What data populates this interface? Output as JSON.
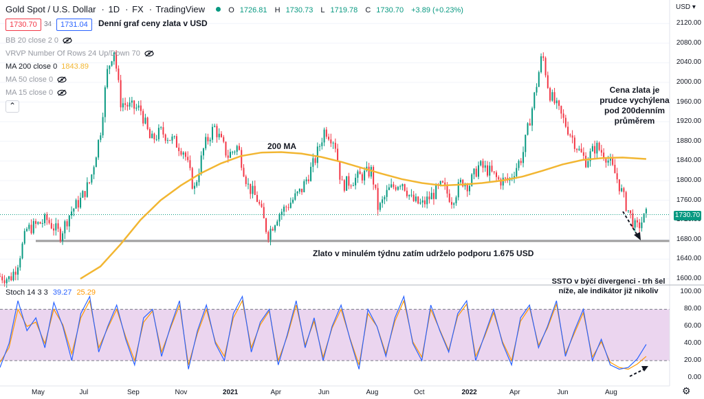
{
  "header": {
    "symbol": "Gold Spot / U.S. Dollar",
    "interval": "1D",
    "exchange": "FX",
    "platform": "TradingView",
    "ohlc": {
      "o_label": "O",
      "o": "1726.81",
      "h_label": "H",
      "h": "1730.73",
      "l_label": "L",
      "l": "1719.78",
      "c_label": "C",
      "c": "1730.70",
      "change": "+3.89 (+0.23%)"
    },
    "sell_price": "1730.70",
    "spread": "34",
    "buy_price": "1731.04",
    "chart_title": "Denní graf ceny zlata v USD",
    "currency": "USD"
  },
  "indicators": [
    {
      "label": "BB 20 close 2 0",
      "active": false
    },
    {
      "label": "VRVP Number Of Rows 24 Up/Down 70",
      "active": false
    },
    {
      "label": "MA 200 close 0",
      "value": "1843.89",
      "active": true
    },
    {
      "label": "MA 50 close 0",
      "active": false
    },
    {
      "label": "MA 15 close 0",
      "active": false
    }
  ],
  "stoch": {
    "label": "Stoch 14 3 3",
    "k": "39.27",
    "d": "25.29",
    "k_color": "#2962ff",
    "d_color": "#ff9800"
  },
  "annotations": {
    "ma_label": "200 MA",
    "support_note": "Zlato v minulém týdnu zatím udrželo podporu 1.675 USD",
    "deviation_note": [
      "Cena zlata je",
      "prudce vychýlena",
      "pod 200denním",
      "průměrem"
    ],
    "ssto_note": [
      "SSTO v býčí divergenci - trh šel",
      "níže, ale indikátor již nikoliv"
    ]
  },
  "colors": {
    "up": "#089981",
    "down": "#f23645",
    "ma200": "#f2b632",
    "support": "#9e9e9e",
    "stoch_band": "#e1bee7"
  },
  "chart_data": {
    "type": "line",
    "xlabels": [
      "May",
      "Jul",
      "Sep",
      "Nov",
      "2021",
      "Apr",
      "Jun",
      "Aug",
      "Oct",
      "2022",
      "Apr",
      "Jun",
      "Aug"
    ],
    "price_axis": {
      "ylim": [
        1590,
        2140
      ],
      "ticks": [
        2120,
        2080,
        2040,
        2000,
        1960,
        1920,
        1880,
        1840,
        1800,
        1760,
        1720,
        1680,
        1640,
        1600
      ],
      "last": 1730.7
    },
    "stoch_axis": {
      "ylim": [
        -8,
        106
      ],
      "ticks": [
        100,
        80,
        60,
        40,
        20,
        0
      ],
      "bands": [
        20,
        80
      ]
    },
    "price_path": [
      [
        0,
        1605
      ],
      [
        0.015,
        1600
      ],
      [
        0.025,
        1625
      ],
      [
        0.04,
        1700
      ],
      [
        0.055,
        1710
      ],
      [
        0.07,
        1720
      ],
      [
        0.09,
        1690
      ],
      [
        0.105,
        1735
      ],
      [
        0.12,
        1760
      ],
      [
        0.135,
        1800
      ],
      [
        0.15,
        1900
      ],
      [
        0.16,
        2020
      ],
      [
        0.17,
        2070
      ],
      [
        0.18,
        1960
      ],
      [
        0.195,
        1950
      ],
      [
        0.21,
        1945
      ],
      [
        0.225,
        1880
      ],
      [
        0.24,
        1900
      ],
      [
        0.26,
        1880
      ],
      [
        0.275,
        1860
      ],
      [
        0.29,
        1780
      ],
      [
        0.305,
        1870
      ],
      [
        0.32,
        1910
      ],
      [
        0.34,
        1850
      ],
      [
        0.355,
        1870
      ],
      [
        0.37,
        1790
      ],
      [
        0.385,
        1760
      ],
      [
        0.4,
        1690
      ],
      [
        0.415,
        1730
      ],
      [
        0.43,
        1750
      ],
      [
        0.45,
        1780
      ],
      [
        0.47,
        1840
      ],
      [
        0.485,
        1905
      ],
      [
        0.5,
        1880
      ],
      [
        0.51,
        1790
      ],
      [
        0.525,
        1800
      ],
      [
        0.54,
        1810
      ],
      [
        0.555,
        1820
      ],
      [
        0.565,
        1740
      ],
      [
        0.58,
        1780
      ],
      [
        0.6,
        1800
      ],
      [
        0.615,
        1760
      ],
      [
        0.63,
        1750
      ],
      [
        0.645,
        1770
      ],
      [
        0.66,
        1790
      ],
      [
        0.675,
        1760
      ],
      [
        0.69,
        1800
      ],
      [
        0.7,
        1790
      ],
      [
        0.715,
        1830
      ],
      [
        0.73,
        1820
      ],
      [
        0.745,
        1800
      ],
      [
        0.76,
        1800
      ],
      [
        0.78,
        1850
      ],
      [
        0.795,
        1950
      ],
      [
        0.81,
        2060
      ],
      [
        0.82,
        1980
      ],
      [
        0.835,
        1940
      ],
      [
        0.85,
        1900
      ],
      [
        0.865,
        1860
      ],
      [
        0.875,
        1840
      ],
      [
        0.89,
        1870
      ],
      [
        0.905,
        1850
      ],
      [
        0.92,
        1810
      ],
      [
        0.935,
        1750
      ],
      [
        0.95,
        1700
      ],
      [
        0.96,
        1720
      ],
      [
        0.965,
        1730
      ]
    ],
    "ma200_path": [
      [
        0.12,
        1600
      ],
      [
        0.15,
        1625
      ],
      [
        0.18,
        1670
      ],
      [
        0.21,
        1720
      ],
      [
        0.24,
        1760
      ],
      [
        0.27,
        1790
      ],
      [
        0.3,
        1815
      ],
      [
        0.33,
        1835
      ],
      [
        0.36,
        1850
      ],
      [
        0.39,
        1857
      ],
      [
        0.42,
        1858
      ],
      [
        0.45,
        1855
      ],
      [
        0.48,
        1848
      ],
      [
        0.51,
        1838
      ],
      [
        0.54,
        1826
      ],
      [
        0.57,
        1814
      ],
      [
        0.6,
        1803
      ],
      [
        0.63,
        1795
      ],
      [
        0.66,
        1790
      ],
      [
        0.69,
        1792
      ],
      [
        0.72,
        1795
      ],
      [
        0.75,
        1800
      ],
      [
        0.78,
        1808
      ],
      [
        0.81,
        1820
      ],
      [
        0.84,
        1833
      ],
      [
        0.87,
        1842
      ],
      [
        0.9,
        1846
      ],
      [
        0.93,
        1847
      ],
      [
        0.965,
        1844
      ]
    ],
    "support_level": 1677,
    "stoch_k": [
      12,
      40,
      90,
      55,
      70,
      35,
      88,
      60,
      20,
      75,
      95,
      30,
      60,
      85,
      45,
      15,
      70,
      80,
      25,
      60,
      90,
      10,
      55,
      85,
      40,
      20,
      75,
      95,
      30,
      65,
      80,
      15,
      50,
      90,
      35,
      70,
      20,
      60,
      85,
      45,
      10,
      80,
      60,
      25,
      70,
      95,
      40,
      20,
      85,
      55,
      30,
      75,
      90,
      20,
      50,
      80,
      40,
      15,
      70,
      85,
      35,
      60,
      90,
      25,
      55,
      80,
      20,
      45,
      15,
      10,
      12,
      22,
      39
    ],
    "stoch_d": [
      18,
      35,
      80,
      60,
      65,
      40,
      80,
      62,
      28,
      70,
      90,
      35,
      58,
      80,
      48,
      20,
      65,
      78,
      30,
      58,
      85,
      15,
      52,
      80,
      42,
      25,
      70,
      90,
      35,
      62,
      78,
      20,
      48,
      85,
      38,
      66,
      24,
      58,
      80,
      46,
      15,
      75,
      60,
      28,
      66,
      90,
      42,
      24,
      80,
      56,
      32,
      72,
      86,
      25,
      48,
      76,
      42,
      20,
      66,
      82,
      38,
      58,
      86,
      28,
      52,
      76,
      24,
      42,
      18,
      12,
      10,
      16,
      25
    ]
  }
}
